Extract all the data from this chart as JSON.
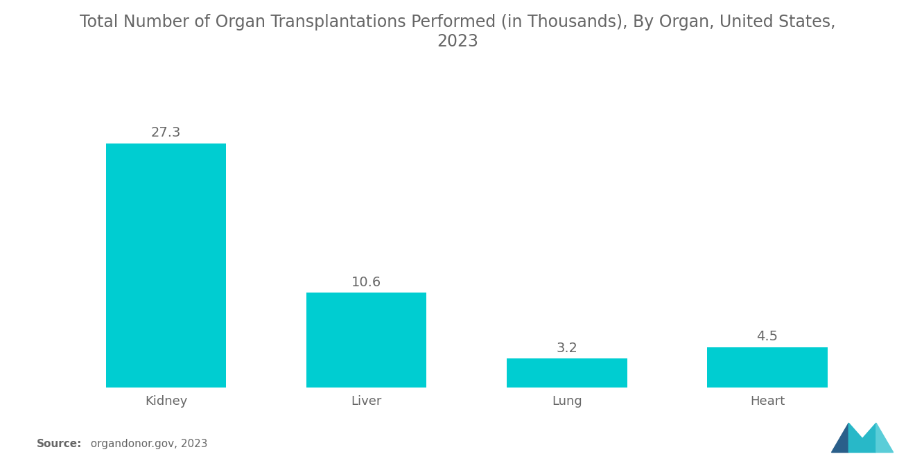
{
  "title": "Total Number of Organ Transplantations Performed (in Thousands), By Organ, United States,\n2023",
  "categories": [
    "Kidney",
    "Liver",
    "Lung",
    "Heart"
  ],
  "values": [
    27.3,
    10.6,
    3.2,
    4.5
  ],
  "bar_color": "#00CDD1",
  "value_labels": [
    "27.3",
    "10.6",
    "3.2",
    "4.5"
  ],
  "source_bold": "Source:",
  "source_text": "  organdonor.gov, 2023",
  "title_fontsize": 17,
  "label_fontsize": 13,
  "value_fontsize": 14,
  "source_fontsize": 11,
  "background_color": "#ffffff",
  "text_color": "#666666",
  "ylim": [
    0,
    33
  ],
  "bar_width": 0.6,
  "x_positions": [
    0,
    1,
    2,
    3
  ]
}
